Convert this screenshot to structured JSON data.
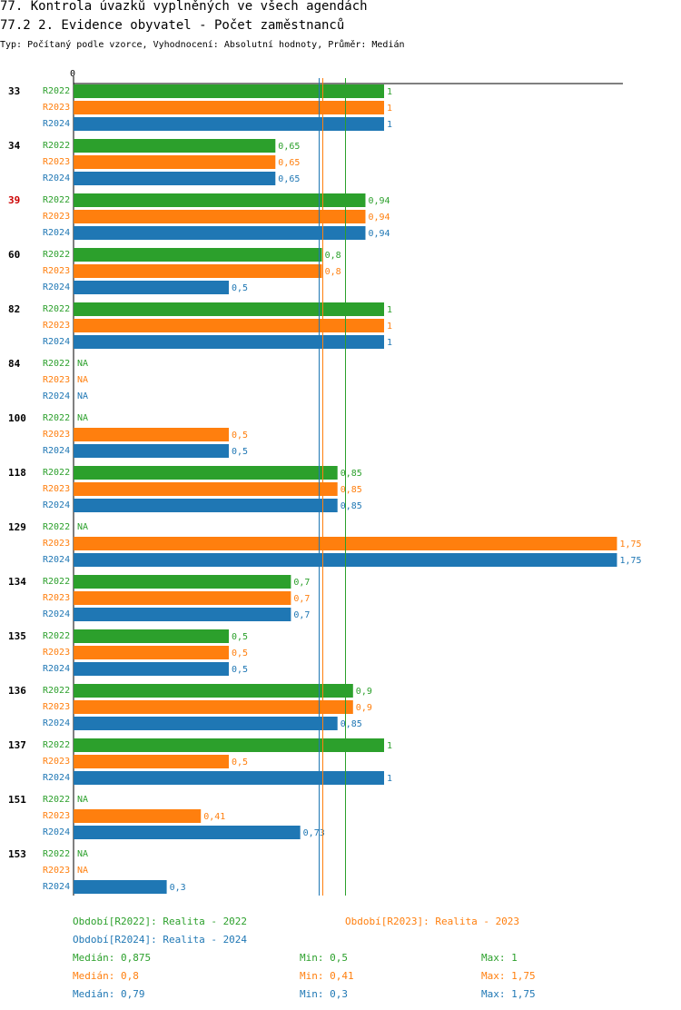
{
  "title_main": "77. Kontrola úvazků vyplněných ve všech agendách",
  "title_sub": "77.2 2. Evidence obyvatel - Počet zaměstnanců",
  "subtitle": "Typ: Počítaný podle vzorce, Vyhodnocení: Absolutní hodnoty, Průměr: Medián",
  "colors": {
    "R2022": "#2ca02c",
    "R2023": "#ff7f0e",
    "R2024": "#1f77b4",
    "highlight": "#cc0000",
    "axis": "#000000"
  },
  "chart_data": {
    "type": "bar",
    "orientation": "horizontal",
    "xlim": [
      0,
      1.75
    ],
    "x_tick_labels": [
      "0"
    ],
    "series_names": [
      "R2022",
      "R2023",
      "R2024"
    ],
    "na_label": "NA",
    "categories": [
      {
        "label": "33",
        "highlight": false,
        "values": [
          "1",
          "1",
          "1"
        ]
      },
      {
        "label": "34",
        "highlight": false,
        "values": [
          "0,65",
          "0,65",
          "0,65"
        ]
      },
      {
        "label": "39",
        "highlight": true,
        "values": [
          "0,94",
          "0,94",
          "0,94"
        ]
      },
      {
        "label": "60",
        "highlight": false,
        "values": [
          "0,8",
          "0,8",
          "0,5"
        ]
      },
      {
        "label": "82",
        "highlight": false,
        "values": [
          "1",
          "1",
          "1"
        ]
      },
      {
        "label": "84",
        "highlight": false,
        "values": [
          null,
          null,
          null
        ]
      },
      {
        "label": "100",
        "highlight": false,
        "values": [
          null,
          "0,5",
          "0,5"
        ]
      },
      {
        "label": "118",
        "highlight": false,
        "values": [
          "0,85",
          "0,85",
          "0,85"
        ]
      },
      {
        "label": "129",
        "highlight": false,
        "values": [
          null,
          "1,75",
          "1,75"
        ]
      },
      {
        "label": "134",
        "highlight": false,
        "values": [
          "0,7",
          "0,7",
          "0,7"
        ]
      },
      {
        "label": "135",
        "highlight": false,
        "values": [
          "0,5",
          "0,5",
          "0,5"
        ]
      },
      {
        "label": "136",
        "highlight": false,
        "values": [
          "0,9",
          "0,9",
          "0,85"
        ]
      },
      {
        "label": "137",
        "highlight": false,
        "values": [
          "1",
          "0,5",
          "1"
        ]
      },
      {
        "label": "151",
        "highlight": false,
        "values": [
          null,
          "0,41",
          "0,73"
        ]
      },
      {
        "label": "153",
        "highlight": false,
        "values": [
          null,
          null,
          "0,3"
        ]
      }
    ],
    "median_lines": [
      {
        "series": "R2022",
        "value": 0.875
      },
      {
        "series": "R2023",
        "value": 0.8
      },
      {
        "series": "R2024",
        "value": 0.79
      }
    ]
  },
  "legend": [
    {
      "text": "Období[R2022]: Realita - 2022",
      "series": "R2022"
    },
    {
      "text": "Období[R2023]: Realita - 2023",
      "series": "R2023"
    },
    {
      "text": "Období[R2024]: Realita - 2024",
      "series": "R2024"
    }
  ],
  "stats": [
    {
      "series": "R2022",
      "median": "Medián: 0,875",
      "min": "Min: 0,5",
      "max": "Max: 1"
    },
    {
      "series": "R2023",
      "median": "Medián: 0,8",
      "min": "Min: 0,41",
      "max": "Max: 1,75"
    },
    {
      "series": "R2024",
      "median": "Medián: 0,79",
      "min": "Min: 0,3",
      "max": "Max: 1,75"
    }
  ]
}
